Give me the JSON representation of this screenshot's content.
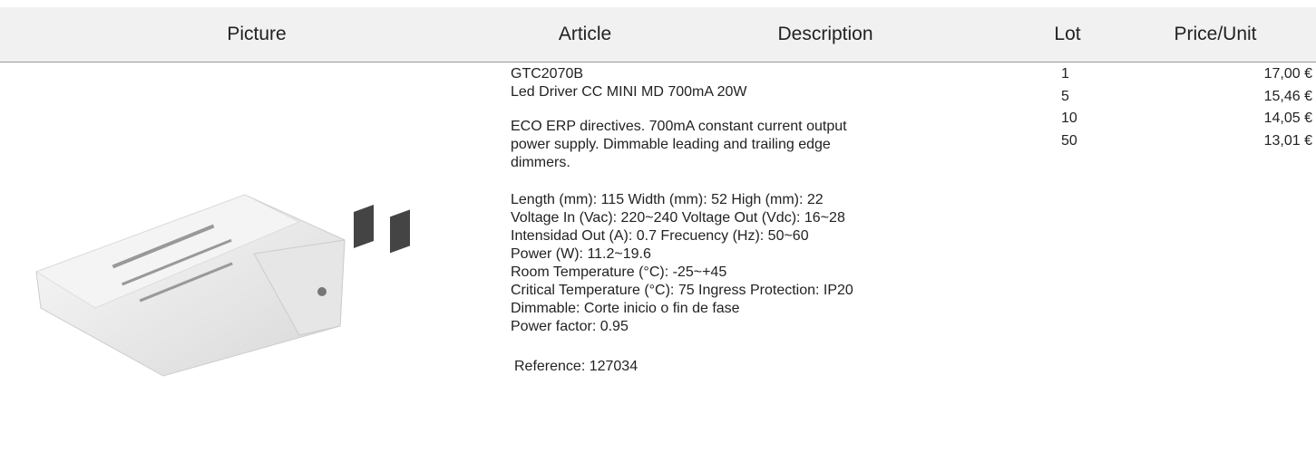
{
  "header": {
    "picture": "Picture",
    "article": "Article",
    "description": "Description",
    "lot": "Lot",
    "price": "Price/Unit"
  },
  "product": {
    "article": "GTC2070B",
    "name": "Led Driver CC MINI MD 700mA 20W",
    "description": [
      "ECO ERP directives. 700mA constant current output",
      "power supply. Dimmable leading and trailing edge",
      "dimmers."
    ],
    "specs": [
      "Length (mm): 115 Width (mm): 52 High (mm): 22",
      "Voltage In (Vac): 220~240 Voltage Out (Vdc): 16~28",
      "Intensidad Out (A): 0.7 Frecuency (Hz): 50~60",
      "Power (W): 11.2~19.6",
      "Room Temperature (°C): -25~+45",
      "Critical Temperature (°C): 75 Ingress Protection: IP20",
      "Dimmable: Corte inicio o fin de fase",
      "Power factor: 0.95"
    ],
    "reference": "Reference: 127034"
  },
  "prices": [
    {
      "lot": 1,
      "price": "17,00 €"
    },
    {
      "lot": 5,
      "price": "15,46 €"
    },
    {
      "lot": 10,
      "price": "14,05 €"
    },
    {
      "lot": 50,
      "price": "13,01 €"
    }
  ]
}
